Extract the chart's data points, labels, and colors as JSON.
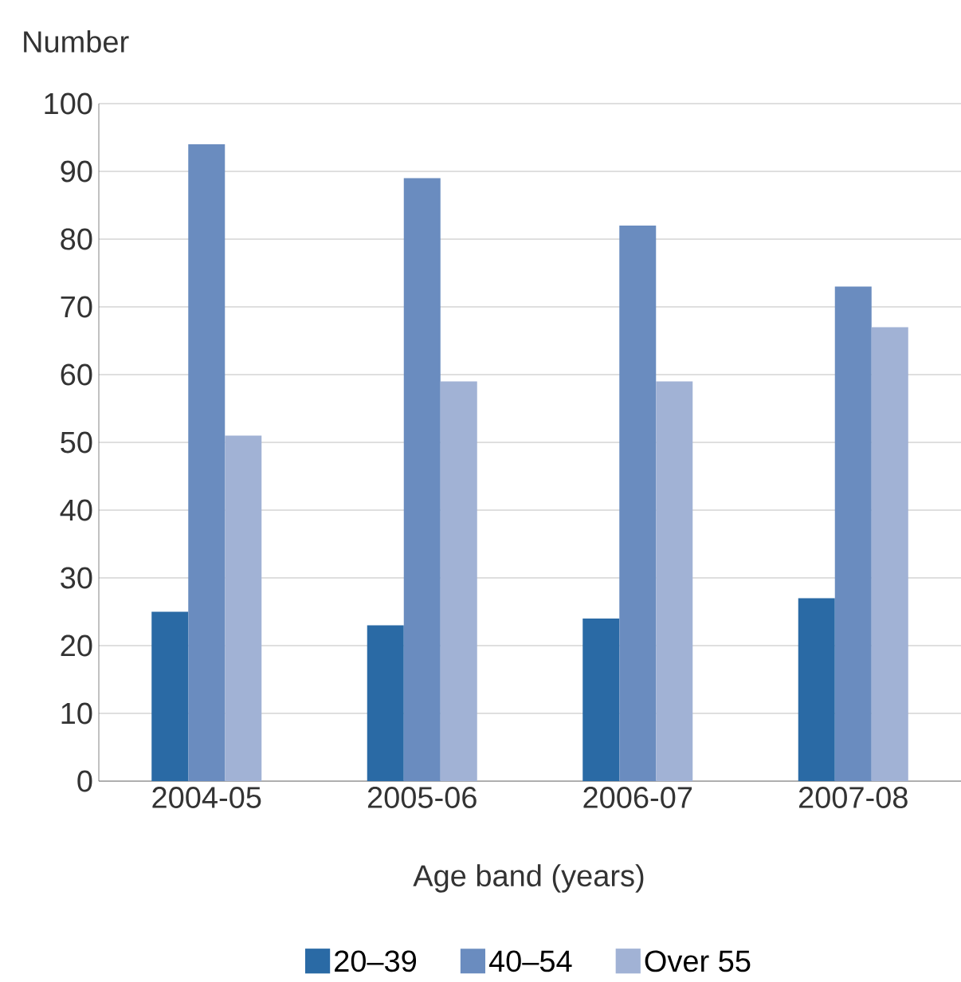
{
  "chart_data": {
    "type": "bar",
    "ylabel": "Number",
    "xlabel": "Age band (years)",
    "categories": [
      "2004-05",
      "2005-06",
      "2006-07",
      "2007-08"
    ],
    "series": [
      {
        "name": "20–39",
        "color": "#2a6aa5",
        "values": [
          25,
          23,
          24,
          27
        ]
      },
      {
        "name": "40–54",
        "color": "#6a8cbf",
        "values": [
          94,
          89,
          82,
          73
        ]
      },
      {
        "name": "Over 55",
        "color": "#a1b2d5",
        "values": [
          51,
          59,
          59,
          67
        ]
      }
    ],
    "ylim": [
      0,
      100
    ],
    "yticks": [
      0,
      10,
      20,
      30,
      40,
      50,
      60,
      70,
      80,
      90,
      100
    ],
    "grid": "y",
    "legend": "bottom"
  }
}
